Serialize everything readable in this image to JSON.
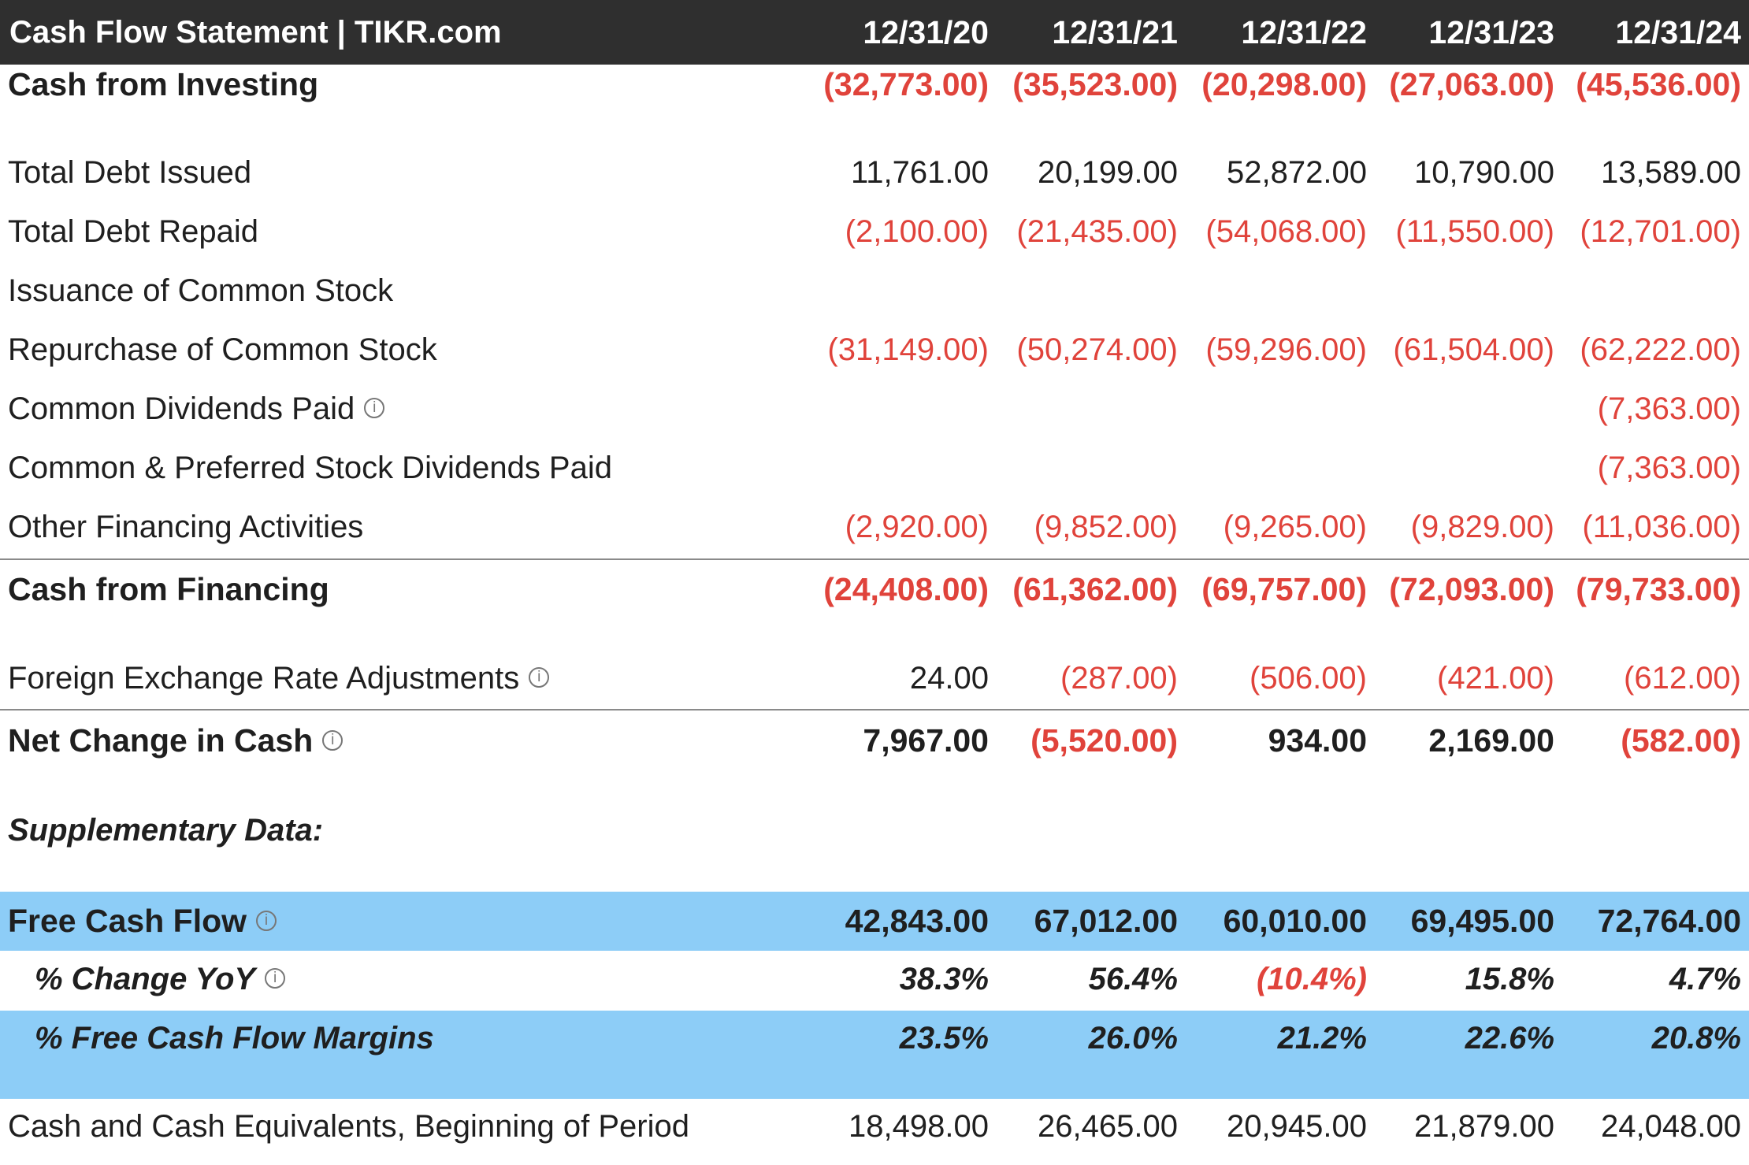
{
  "header": {
    "title": "Cash Flow Statement | TIKR.com",
    "periods": [
      "12/31/20",
      "12/31/21",
      "12/31/22",
      "12/31/23",
      "12/31/24"
    ]
  },
  "rows": [
    {
      "key": "cash_from_investing",
      "label": "Cash from Investing",
      "values": [
        "(32,773.00)",
        "(35,523.00)",
        "(20,298.00)",
        "(27,063.00)",
        "(45,536.00)"
      ]
    },
    {
      "key": "total_debt_issued",
      "label": "Total Debt Issued",
      "values": [
        "11,761.00",
        "20,199.00",
        "52,872.00",
        "10,790.00",
        "13,589.00"
      ]
    },
    {
      "key": "total_debt_repaid",
      "label": "Total Debt Repaid",
      "values": [
        "(2,100.00)",
        "(21,435.00)",
        "(54,068.00)",
        "(11,550.00)",
        "(12,701.00)"
      ]
    },
    {
      "key": "issuance_common_stock",
      "label": "Issuance of Common Stock",
      "values": [
        "",
        "",
        "",
        "",
        ""
      ]
    },
    {
      "key": "repurchase_common_stock",
      "label": "Repurchase of Common Stock",
      "values": [
        "(31,149.00)",
        "(50,274.00)",
        "(59,296.00)",
        "(61,504.00)",
        "(62,222.00)"
      ]
    },
    {
      "key": "common_dividends_paid",
      "label": "Common Dividends Paid",
      "values": [
        "",
        "",
        "",
        "",
        "(7,363.00)"
      ]
    },
    {
      "key": "common_pref_dividends_paid",
      "label": "Common & Preferred Stock Dividends Paid",
      "values": [
        "",
        "",
        "",
        "",
        "(7,363.00)"
      ]
    },
    {
      "key": "other_financing",
      "label": "Other Financing Activities",
      "values": [
        "(2,920.00)",
        "(9,852.00)",
        "(9,265.00)",
        "(9,829.00)",
        "(11,036.00)"
      ]
    },
    {
      "key": "cash_from_financing",
      "label": "Cash from Financing",
      "values": [
        "(24,408.00)",
        "(61,362.00)",
        "(69,757.00)",
        "(72,093.00)",
        "(79,733.00)"
      ]
    },
    {
      "key": "fx_adjustments",
      "label": "Foreign Exchange Rate Adjustments",
      "values": [
        "24.00",
        "(287.00)",
        "(506.00)",
        "(421.00)",
        "(612.00)"
      ]
    },
    {
      "key": "net_change_cash",
      "label": "Net Change in Cash",
      "values": [
        "7,967.00",
        "(5,520.00)",
        "934.00",
        "2,169.00",
        "(582.00)"
      ]
    },
    {
      "key": "supplementary",
      "label": "Supplementary Data:",
      "values": [
        "",
        "",
        "",
        "",
        ""
      ]
    },
    {
      "key": "free_cash_flow",
      "label": "Free Cash Flow",
      "values": [
        "42,843.00",
        "67,012.00",
        "60,010.00",
        "69,495.00",
        "72,764.00"
      ]
    },
    {
      "key": "pct_change_yoy",
      "label": "% Change YoY",
      "values": [
        "38.3%",
        "56.4%",
        "(10.4%)",
        "15.8%",
        "4.7%"
      ]
    },
    {
      "key": "fcf_margins",
      "label": "% Free Cash Flow Margins",
      "values": [
        "23.5%",
        "26.0%",
        "21.2%",
        "22.6%",
        "20.8%"
      ]
    },
    {
      "key": "cash_beginning",
      "label": "Cash and Cash Equivalents, Beginning of Period",
      "values": [
        "18,498.00",
        "26,465.00",
        "20,945.00",
        "21,879.00",
        "24,048.00"
      ]
    }
  ],
  "info_icon_glyph": "i",
  "colors": {
    "header_bg": "#2f2f2f",
    "negative": "#e0433b",
    "highlight_band": "#8dcdf7"
  }
}
